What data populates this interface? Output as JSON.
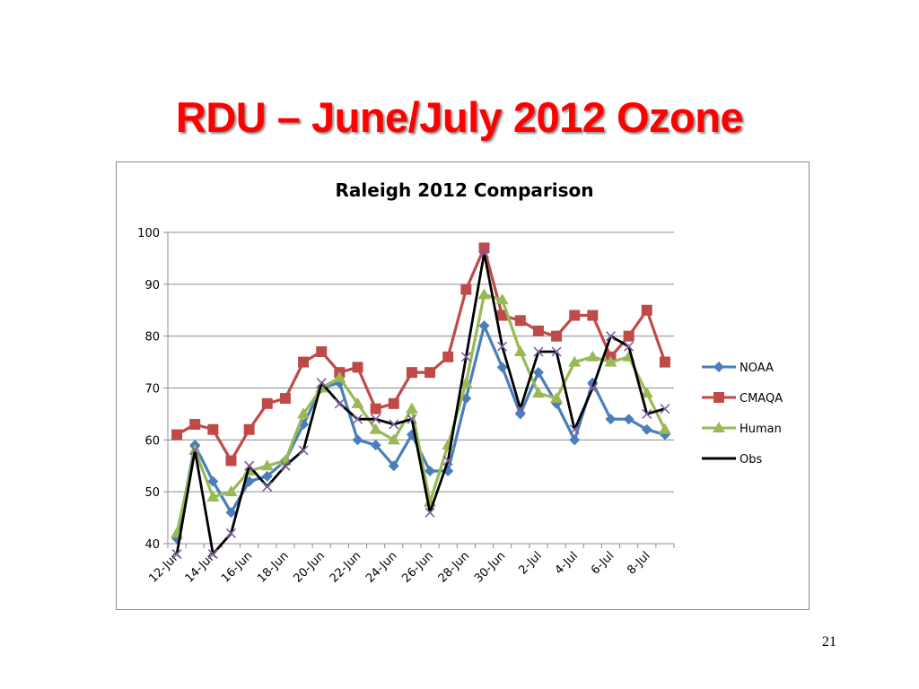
{
  "slide": {
    "title": "RDU – June/July 2012 Ozone",
    "page_number": "21",
    "title_color": "#ff0000"
  },
  "chart_data": {
    "type": "line",
    "title": "Raleigh 2012 Comparison",
    "xlabel": "",
    "ylabel": "",
    "ylim": [
      40,
      100
    ],
    "yticks": [
      40,
      50,
      60,
      70,
      80,
      90,
      100
    ],
    "grid": true,
    "legend": "right",
    "x": [
      "12-Jun",
      "13-Jun",
      "14-Jun",
      "15-Jun",
      "16-Jun",
      "17-Jun",
      "18-Jun",
      "19-Jun",
      "20-Jun",
      "21-Jun",
      "22-Jun",
      "23-Jun",
      "24-Jun",
      "25-Jun",
      "26-Jun",
      "27-Jun",
      "28-Jun",
      "29-Jun",
      "30-Jun",
      "1-Jul",
      "2-Jul",
      "3-Jul",
      "4-Jul",
      "5-Jul",
      "6-Jul",
      "7-Jul",
      "8-Jul",
      "9-Jul"
    ],
    "xtick_labels": [
      "12-Jun",
      "14-Jun",
      "16-Jun",
      "18-Jun",
      "20-Jun",
      "22-Jun",
      "24-Jun",
      "26-Jun",
      "28-Jun",
      "30-Jun",
      "2-Jul",
      "4-Jul",
      "6-Jul",
      "8-Jul"
    ],
    "series": [
      {
        "name": "NOAA",
        "color": "#4a7ebb",
        "marker": "diamond",
        "values": [
          41,
          59,
          52,
          46,
          52,
          53,
          56,
          63,
          70,
          71,
          60,
          59,
          55,
          61,
          54,
          54,
          68,
          82,
          74,
          65,
          73,
          67,
          60,
          71,
          64,
          64,
          62,
          61
        ]
      },
      {
        "name": "CMAQA",
        "color": "#be4b48",
        "marker": "square",
        "values": [
          61,
          63,
          62,
          56,
          62,
          67,
          68,
          75,
          77,
          73,
          74,
          66,
          67,
          73,
          73,
          76,
          89,
          97,
          84,
          83,
          81,
          80,
          84,
          84,
          76,
          80,
          85,
          75
        ]
      },
      {
        "name": "Human",
        "color": "#98b954",
        "marker": "triangle",
        "values": [
          42,
          58,
          49,
          50,
          54,
          55,
          56,
          65,
          70,
          72,
          67,
          62,
          60,
          66,
          48,
          59,
          71,
          88,
          87,
          77,
          69,
          68,
          75,
          76,
          75,
          76,
          69,
          62
        ]
      },
      {
        "name": "Obs",
        "color": "#000000",
        "marker": "x",
        "marker_color": "#7d60a0",
        "values": [
          38,
          58,
          38,
          42,
          55,
          51,
          55,
          58,
          71,
          67,
          64,
          64,
          63,
          64,
          46,
          56,
          76,
          96,
          78,
          66,
          77,
          77,
          62,
          70,
          80,
          78,
          65,
          66
        ]
      }
    ]
  }
}
